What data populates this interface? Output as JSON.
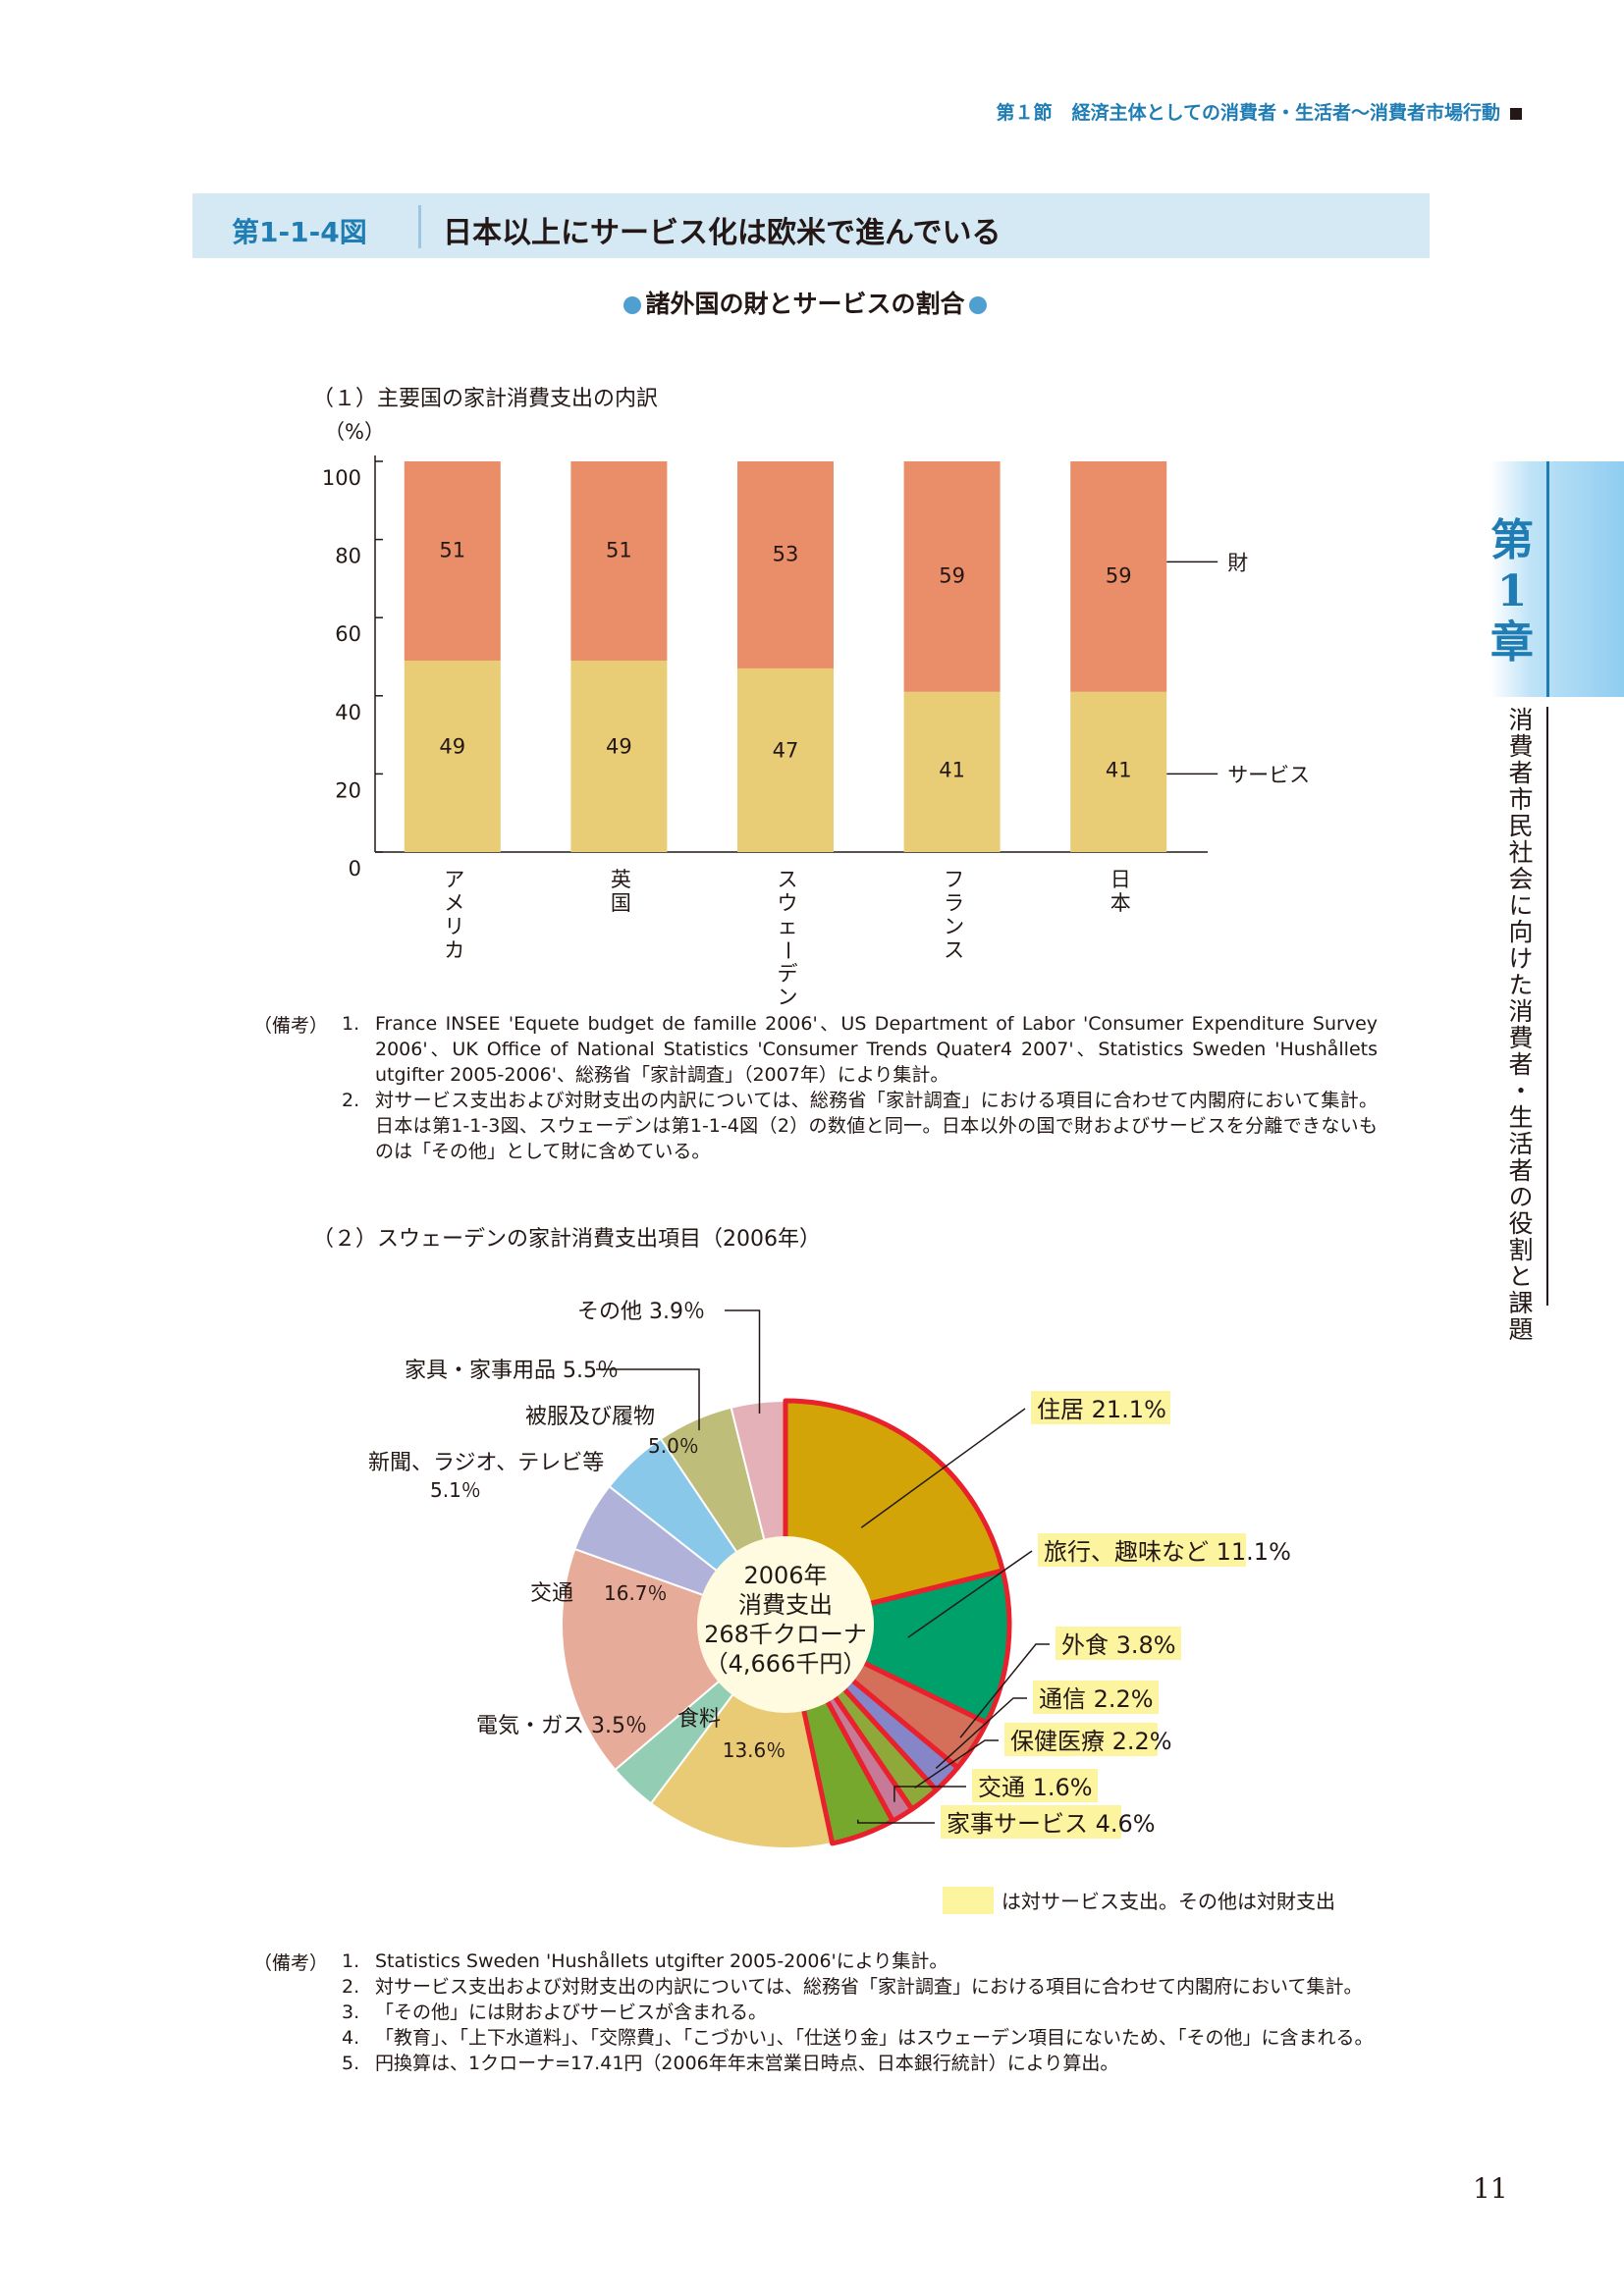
{
  "running_head": {
    "section": "第１節",
    "title": "経済主体としての消費者・生活者〜消費者市場行動"
  },
  "figure": {
    "number": "第1-1-4図",
    "title": "日本以上にサービス化は欧米で進んでいる"
  },
  "subtitle": "諸外国の財とサービスの割合",
  "chapter_tab": {
    "label": "第1章",
    "side_text": "消費者市民社会に向けた消費者・生活者の役割と課題"
  },
  "page_number": "11",
  "colors": {
    "goods": "#e98e68",
    "services": "#e8cc76",
    "accent_blue": "#1f7db4",
    "header_bg": "#d5e9f5",
    "highlight": "#fdf4a0",
    "service_outline": "#e8212d"
  },
  "chart_data": [
    {
      "type": "bar",
      "section_title": "（１）主要国の家計消費支出の内訳",
      "unit_label": "（%）",
      "stacked": true,
      "categories": [
        "アメリカ",
        "英国",
        "スウェーデン",
        "フランス",
        "日本"
      ],
      "series": [
        {
          "name": "サービス",
          "values": [
            49,
            49,
            47,
            41,
            41
          ]
        },
        {
          "name": "財",
          "values": [
            51,
            51,
            53,
            59,
            59
          ]
        }
      ],
      "ylim": [
        0,
        100
      ],
      "yticks": [
        "0",
        "20",
        "40",
        "60",
        "80",
        "100"
      ],
      "legend_placement": "right, labels pointing to last bar"
    },
    {
      "type": "pie",
      "section_title": "（２）スウェーデンの家計消費支出項目（2006年）",
      "center_label": [
        "2006年",
        "消費支出",
        "268千クローナ",
        "（4,666千円）"
      ],
      "slices": [
        {
          "label": "住居",
          "value": 21.1,
          "value_text": "21.1%",
          "service": true,
          "color": "#d3a407"
        },
        {
          "label": "旅行、趣味など",
          "value": 11.1,
          "value_text": "11.1%",
          "service": true,
          "color": "#00a06a"
        },
        {
          "label": "外食",
          "value": 3.8,
          "value_text": "3.8%",
          "service": true,
          "color": "#d46f5a"
        },
        {
          "label": "通信",
          "value": 2.2,
          "value_text": "2.2%",
          "service": true,
          "color": "#8585c8"
        },
        {
          "label": "保健医療",
          "value": 2.2,
          "value_text": "2.2%",
          "service": true,
          "color": "#8fa83a"
        },
        {
          "label": "交通",
          "value": 1.6,
          "value_text": "1.6%",
          "service": true,
          "color": "#c77a98"
        },
        {
          "label": "家事サービス",
          "value": 4.6,
          "value_text": "4.6%",
          "service": true,
          "color": "#76a82e"
        },
        {
          "label": "食料",
          "value": 13.6,
          "value_text": "13.6％",
          "service": false,
          "color": "#e9cb76"
        },
        {
          "label": "電気・ガス",
          "value": 3.5,
          "value_text": "3.5％",
          "service": false,
          "color": "#93cdb3"
        },
        {
          "label": "交通",
          "value": 16.7,
          "value_text": "16.7％",
          "service": false,
          "color": "#e7ab9a"
        },
        {
          "label": "新聞、ラジオ、テレビ等",
          "value": 5.1,
          "value_text": "5.1％",
          "service": false,
          "color": "#b1b2d9"
        },
        {
          "label": "被服及び履物",
          "value": 5.0,
          "value_text": "5.0％",
          "service": false,
          "color": "#8ac8ea"
        },
        {
          "label": "家具・家事用品",
          "value": 5.5,
          "value_text": "5.5％",
          "service": false,
          "color": "#bfbd7a"
        },
        {
          "label": "その他",
          "value": 3.9,
          "value_text": "3.9％",
          "service": false,
          "color": "#e5b1b8"
        }
      ],
      "legend_note": "は対サービス支出。その他は対財支出"
    }
  ],
  "notes1": {
    "label": "（備考）",
    "items": [
      {
        "num": "1.",
        "text": "France INSEE 'Equete budget de famille 2006'、US Department of Labor 'Consumer Expenditure Survey 2006'、UK Office of National Statistics 'Consumer Trends Quater4 2007'、Statistics Sweden 'Hushållets utgifter 2005-2006'、総務省「家計調査」（2007年）により集計。"
      },
      {
        "num": "2.",
        "text": "対サービス支出および対財支出の内訳については、総務省「家計調査」における項目に合わせて内閣府において集計。日本は第1-1-3図、スウェーデンは第1-1-4図（2）の数値と同一。日本以外の国で財およびサービスを分離できないものは「その他」として財に含めている。"
      }
    ]
  },
  "notes2": {
    "label": "（備考）",
    "items": [
      {
        "num": "1.",
        "text": "Statistics Sweden 'Hushållets utgifter 2005-2006'により集計。"
      },
      {
        "num": "2.",
        "text": "対サービス支出および対財支出の内訳については、総務省「家計調査」における項目に合わせて内閣府において集計。"
      },
      {
        "num": "3.",
        "text": "「その他」には財およびサービスが含まれる。"
      },
      {
        "num": "4.",
        "text": "「教育」、「上下水道料」、「交際費」、「こづかい」、「仕送り金」はスウェーデン項目にないため、「その他」に含まれる。"
      },
      {
        "num": "5.",
        "text": "円換算は、1クローナ=17.41円（2006年年末営業日時点、日本銀行統計）により算出。"
      }
    ]
  }
}
